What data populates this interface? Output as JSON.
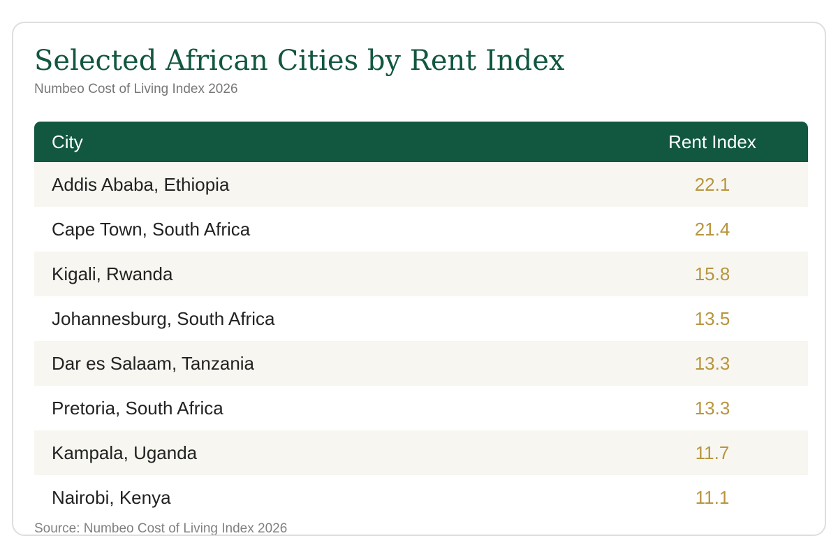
{
  "chart_data": {
    "type": "table",
    "title": "Selected African Cities by Rent Index",
    "subtitle": "Numbeo Cost of Living Index 2026",
    "columns": [
      "City",
      "Rent Index"
    ],
    "rows": [
      {
        "city": "Addis Ababa, Ethiopia",
        "value": "22.1"
      },
      {
        "city": "Cape Town, South Africa",
        "value": "21.4"
      },
      {
        "city": "Kigali, Rwanda",
        "value": "15.8"
      },
      {
        "city": "Johannesburg, South Africa",
        "value": "13.5"
      },
      {
        "city": "Dar es Salaam, Tanzania",
        "value": "13.3"
      },
      {
        "city": "Pretoria, South Africa",
        "value": "13.3"
      },
      {
        "city": "Kampala, Uganda",
        "value": "11.7"
      },
      {
        "city": "Nairobi, Kenya",
        "value": "11.1"
      }
    ],
    "source": "Source: Numbeo Cost of Living Index 2026"
  },
  "colors": {
    "header_bg": "#12573f",
    "title": "#12573f",
    "value_text": "#b8953e",
    "alt_row_bg": "#f7f6f1"
  }
}
